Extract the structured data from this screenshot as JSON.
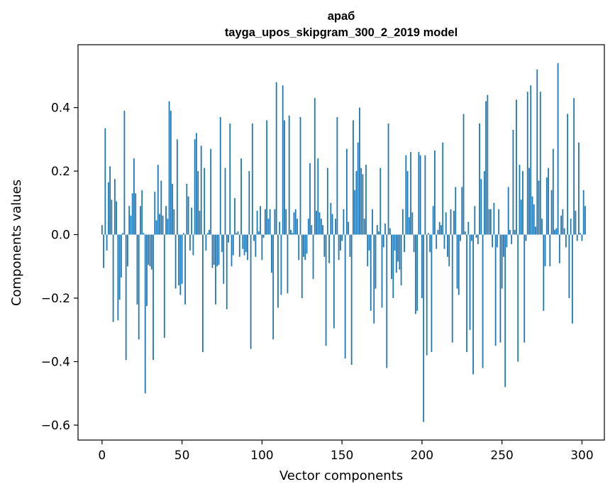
{
  "chart_data": {
    "type": "bar",
    "title_line1": "араб",
    "title_line2": "tayga_upos_skipgram_300_2_2019 model",
    "xlabel": "Vector components",
    "ylabel": "Components values",
    "xlim": [
      -15,
      314
    ],
    "ylim": [
      -0.647,
      0.598
    ],
    "xticks": [
      0,
      50,
      100,
      150,
      200,
      250,
      300
    ],
    "xtick_labels": [
      "0",
      "50",
      "100",
      "150",
      "200",
      "250",
      "300"
    ],
    "yticks": [
      -0.6,
      -0.4,
      -0.2,
      0.0,
      0.2,
      0.4
    ],
    "ytick_labels": [
      "−0.6",
      "−0.4",
      "−0.2",
      "0.0",
      "0.2",
      "0.4"
    ],
    "bar_color": "#1f77b4",
    "values": [
      0.03,
      -0.105,
      0.335,
      -0.05,
      0.165,
      0.215,
      0.11,
      -0.275,
      0.175,
      0.105,
      -0.27,
      -0.205,
      -0.135,
      0.005,
      0.39,
      -0.395,
      -0.1,
      0.09,
      0.06,
      0.13,
      0.24,
      0.13,
      -0.22,
      -0.33,
      0.09,
      0.14,
      0.005,
      -0.5,
      -0.225,
      -0.095,
      -0.1,
      -0.11,
      -0.395,
      0.135,
      0.045,
      0.22,
      0.065,
      0.17,
      0.06,
      -0.325,
      0.09,
      0.05,
      0.42,
      0.39,
      0.16,
      0.08,
      -0.17,
      0.3,
      -0.16,
      -0.19,
      -0.155,
      0.005,
      -0.22,
      0.16,
      0.12,
      -0.05,
      0.085,
      -0.065,
      0.3,
      0.32,
      0.2,
      0.075,
      0.28,
      -0.37,
      0.21,
      -0.05,
      0.005,
      0.015,
      0.27,
      -0.105,
      -0.095,
      -0.22,
      -0.1,
      -0.095,
      0.37,
      -0.055,
      -0.155,
      0.21,
      -0.235,
      -0.025,
      0.35,
      -0.1,
      -0.065,
      0.115,
      0.005,
      0.01,
      -0.07,
      0.24,
      -0.045,
      -0.065,
      -0.055,
      -0.08,
      0.2,
      -0.36,
      0.35,
      -0.02,
      -0.07,
      0.075,
      0.01,
      0.09,
      -0.08,
      -0.01,
      0.08,
      0.36,
      0.05,
      0.08,
      -0.12,
      -0.33,
      0.08,
      0.48,
      -0.23,
      0.04,
      -0.19,
      0.47,
      0.36,
      0.08,
      -0.185,
      0.375,
      0.015,
      0.005,
      0.07,
      0.08,
      0.05,
      -0.08,
      0.37,
      -0.2,
      -0.07,
      -0.08,
      -0.06,
      0.05,
      0.225,
      0.03,
      -0.14,
      0.43,
      0.075,
      0.24,
      0.07,
      0.05,
      0.03,
      -0.07,
      -0.35,
      0.21,
      -0.09,
      0.1,
      0.065,
      -0.295,
      0.05,
      0.37,
      -0.08,
      -0.05,
      -0.02,
      0.08,
      -0.39,
      0.27,
      0.04,
      -0.07,
      -0.41,
      0.36,
      0.14,
      0.2,
      0.29,
      0.4,
      0.21,
      0.19,
      0.05,
      0.22,
      -0.1,
      -0.05,
      -0.24,
      0.08,
      -0.28,
      -0.17,
      0.03,
      0.01,
      0.21,
      -0.23,
      -0.04,
      0.035,
      -0.42,
      0.35,
      0.02,
      -0.14,
      -0.2,
      -0.05,
      -0.12,
      -0.085,
      -0.11,
      -0.16,
      0.08,
      -0.055,
      0.25,
      0.2,
      0.055,
      0.26,
      0.07,
      -0.055,
      -0.25,
      -0.24,
      0.26,
      0.25,
      -0.2,
      -0.59,
      0.25,
      -0.38,
      0.005,
      -0.055,
      -0.37,
      0.09,
      0.265,
      -0.045,
      0.015,
      0.04,
      0.03,
      0.29,
      -0.045,
      0.07,
      -0.07,
      -0.1,
      0.08,
      -0.34,
      0.075,
      0.15,
      -0.17,
      -0.19,
      -0.02,
      0.15,
      0.38,
      0.01,
      -0.37,
      0.04,
      -0.3,
      -0.02,
      -0.44,
      0.09,
      -0.01,
      -0.03,
      0.35,
      0.175,
      -0.42,
      0.2,
      0.42,
      0.44,
      0.08,
      0.08,
      -0.04,
      0.1,
      -0.35,
      -0.04,
      0.08,
      -0.34,
      -0.17,
      -0.07,
      -0.48,
      -0.04,
      0.15,
      0.015,
      -0.03,
      0.33,
      0.015,
      0.425,
      -0.4,
      0.22,
      0.11,
      0.2,
      -0.34,
      -0.02,
      0.45,
      0.21,
      0.47,
      0.12,
      0.095,
      0.025,
      0.52,
      0.17,
      0.45,
      0.05,
      -0.24,
      -0.1,
      0.18,
      0.21,
      -0.1,
      0.14,
      0.27,
      0.015,
      0.02,
      0.54,
      -0.09,
      0.06,
      0.08,
      0.02,
      -0.04,
      0.38,
      -0.2,
      0.05,
      -0.28,
      0.43,
      0.075,
      -0.02,
      0.29,
      0.005,
      -0.02,
      0.14,
      0.09
    ]
  }
}
